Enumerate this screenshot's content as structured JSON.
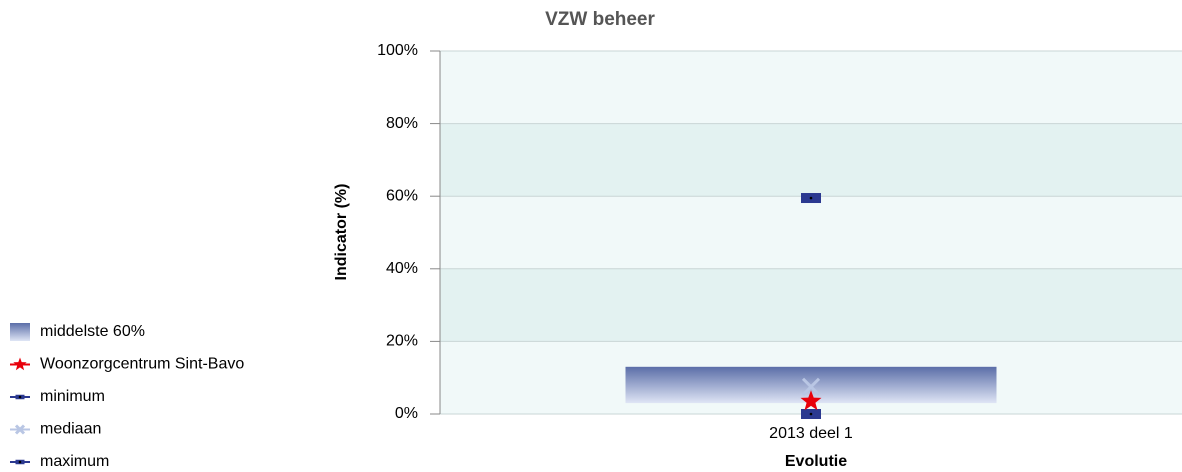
{
  "chart_data": {
    "type": "range",
    "title": "VZW beheer",
    "y_label": "Indicator (%)",
    "x_label": "Evolutie",
    "categories": [
      "2013 deel 1"
    ],
    "ylim": [
      0,
      100
    ],
    "yticks": [
      {
        "value": 0,
        "label": "0%"
      },
      {
        "value": 20,
        "label": "20%"
      },
      {
        "value": 40,
        "label": "40%"
      },
      {
        "value": 60,
        "label": "60%"
      },
      {
        "value": 80,
        "label": "80%"
      },
      {
        "value": 100,
        "label": "100%"
      }
    ],
    "series": [
      {
        "name": "middelste 60%",
        "marker": "box",
        "color": "#5b6ea8",
        "low": [
          3
        ],
        "high": [
          13
        ]
      },
      {
        "name": "Woonzorgcentrum Sint-Bavo",
        "marker": "star",
        "color": "#e8000b",
        "values": [
          3.5
        ]
      },
      {
        "name": "minimum",
        "marker": "square",
        "color": "#2b3990",
        "values": [
          0
        ]
      },
      {
        "name": "mediaan",
        "marker": "x",
        "color": "#b9c6e4",
        "values": [
          7.5
        ]
      },
      {
        "name": "maximum",
        "marker": "square",
        "color": "#2b3990",
        "values": [
          59.5
        ]
      }
    ]
  }
}
